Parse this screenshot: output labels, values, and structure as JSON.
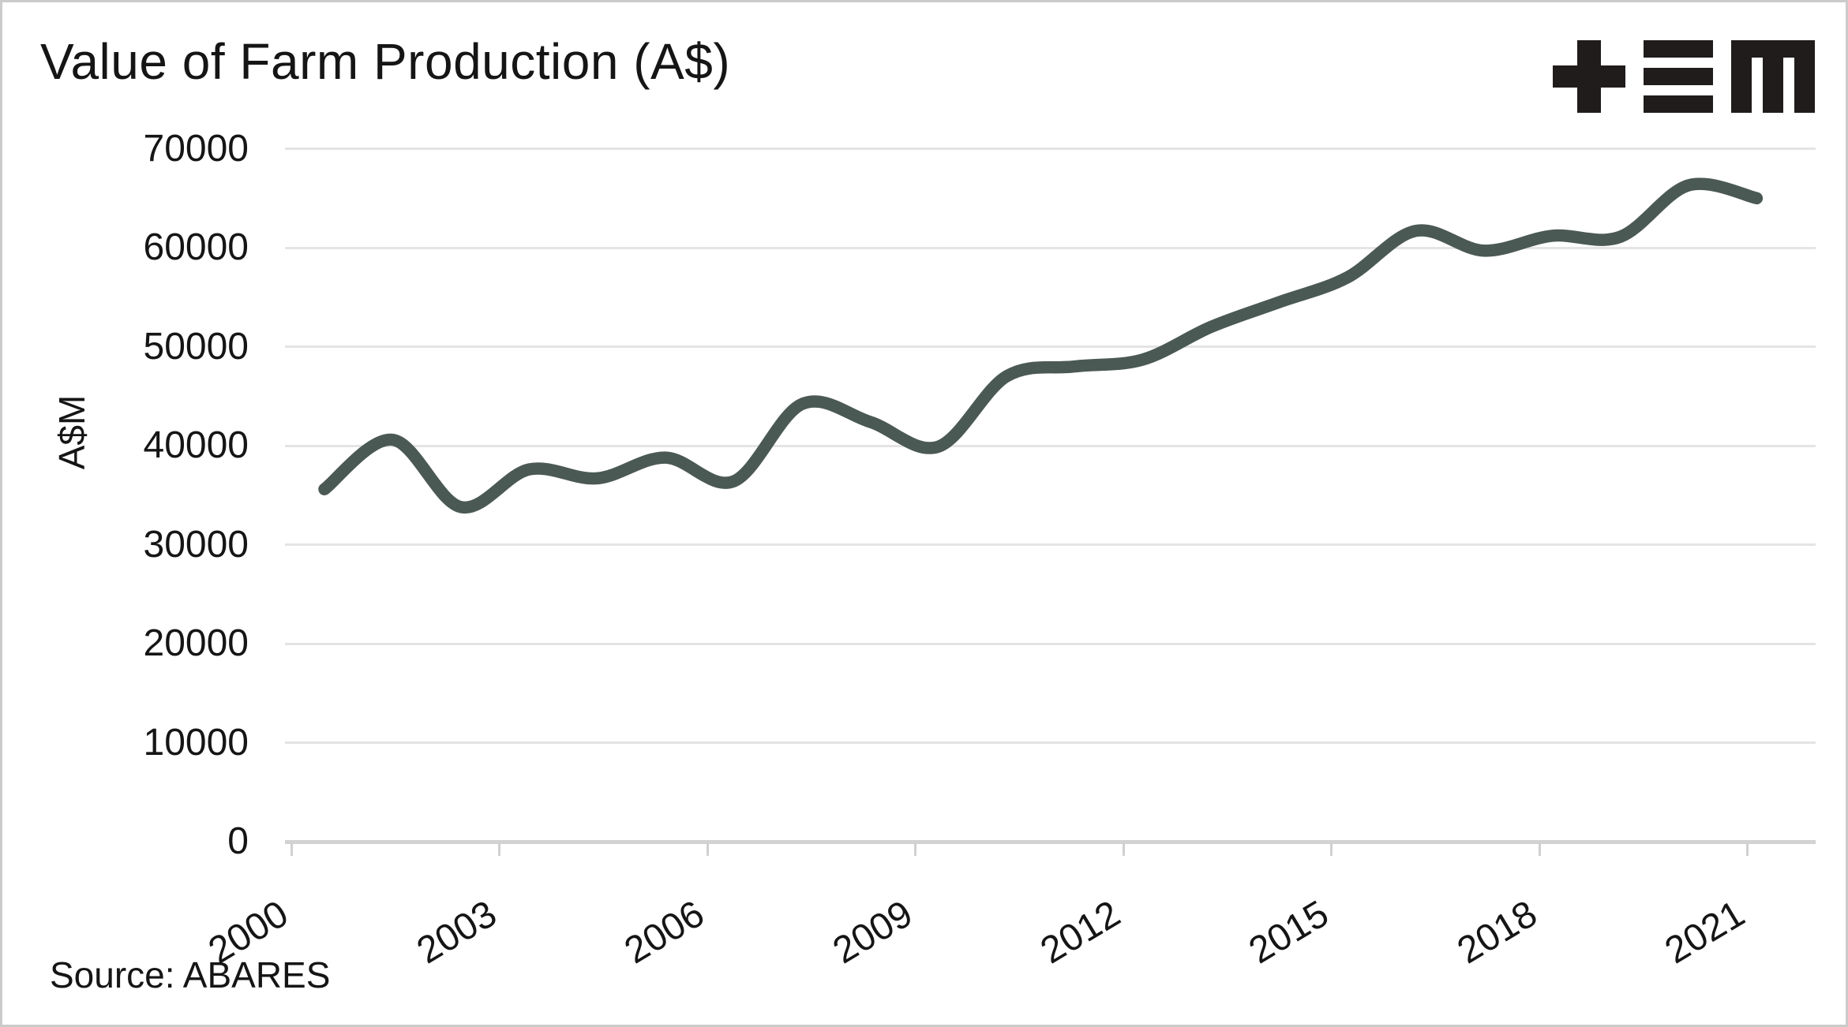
{
  "title": "Value of Farm Production (A$)",
  "source_note": "Source: ABARES",
  "y_axis": {
    "label": "A$M",
    "tick_labels": [
      "70000",
      "60000",
      "50000",
      "40000",
      "30000",
      "20000",
      "10000",
      "0"
    ]
  },
  "x_axis": {
    "tick_labels": [
      "2000",
      "2003",
      "2006",
      "2009",
      "2012",
      "2015",
      "2018",
      "2021"
    ]
  },
  "colors": {
    "line": "#4b5954",
    "gridline": "#e4e4e4",
    "axis_line": "#d2d2d2",
    "text": "#151515",
    "logo": "#201c1b",
    "frame": "#cbcbcb",
    "background": "#ffffff"
  },
  "chart_data": {
    "type": "line",
    "title": "Value of Farm Production (A$)",
    "ylabel": "A$M",
    "xlabel": "",
    "categories": [
      "2000-01",
      "2001-02",
      "2002-03",
      "2003-04",
      "2004-05",
      "2005-06",
      "2006-07",
      "2007-08",
      "2008-09",
      "2009-10",
      "2010-11",
      "2011-12",
      "2012-13",
      "2013-14",
      "2014-15",
      "2015-16",
      "2016-17",
      "2017-18",
      "2018-19",
      "2019-20",
      "2020-21",
      "2021-22"
    ],
    "series": [
      {
        "name": "Value of farm production (A$M)",
        "values": [
          35600,
          40600,
          33800,
          37600,
          36700,
          38800,
          36400,
          44200,
          42400,
          39900,
          47000,
          48000,
          48700,
          52000,
          54500,
          57000,
          61700,
          59700,
          61200,
          61100,
          66300,
          65000
        ]
      }
    ],
    "ylim": [
      0,
      70000
    ],
    "ytick_step": 10000,
    "xtick_labels": [
      "2000",
      "2003",
      "2006",
      "2009",
      "2012",
      "2015",
      "2018",
      "2021"
    ],
    "xtick_interval_years": 3,
    "grid": "horizontal",
    "legend": "none",
    "line_style": "smooth",
    "source": "ABARES"
  }
}
